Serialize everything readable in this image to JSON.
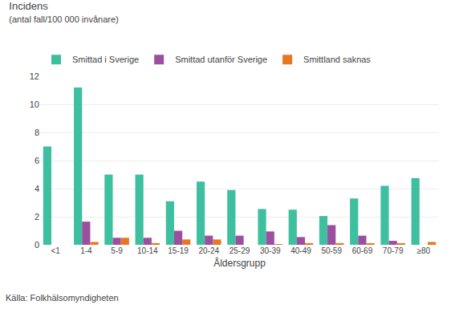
{
  "chart_data": {
    "type": "bar",
    "title": "Incidens",
    "subtitle": "(antal fall/100 000 invånare)",
    "xlabel": "Åldersgrupp",
    "categories": [
      "<1",
      "1-4",
      "5-9",
      "10-14",
      "15-19",
      "20-24",
      "25-29",
      "30-39",
      "40-49",
      "50-59",
      "60-69",
      "70-79",
      "≥80"
    ],
    "series": [
      {
        "name": "Smittad i Sverige",
        "color": "#3dbfa0",
        "values": [
          7.0,
          11.2,
          5.0,
          5.0,
          3.1,
          4.5,
          3.9,
          2.55,
          2.5,
          2.05,
          3.3,
          4.2,
          4.75
        ]
      },
      {
        "name": "Smittad utanför Sverige",
        "color": "#9b4f9e",
        "values": [
          0.0,
          1.65,
          0.5,
          0.5,
          1.0,
          0.65,
          0.65,
          0.95,
          0.55,
          1.4,
          0.65,
          0.28,
          0.0
        ]
      },
      {
        "name": "Smittland saknas",
        "color": "#e87722",
        "values": [
          0.0,
          0.2,
          0.5,
          0.12,
          0.38,
          0.38,
          0.0,
          0.05,
          0.12,
          0.12,
          0.08,
          0.1,
          0.2
        ]
      }
    ],
    "ylim": [
      0,
      12
    ],
    "yticks": [
      0,
      2,
      4,
      6,
      8,
      10,
      12
    ],
    "grid": true,
    "legend": "top",
    "annotations": [
      "Källa: Folkhälsomyndigheten"
    ]
  }
}
